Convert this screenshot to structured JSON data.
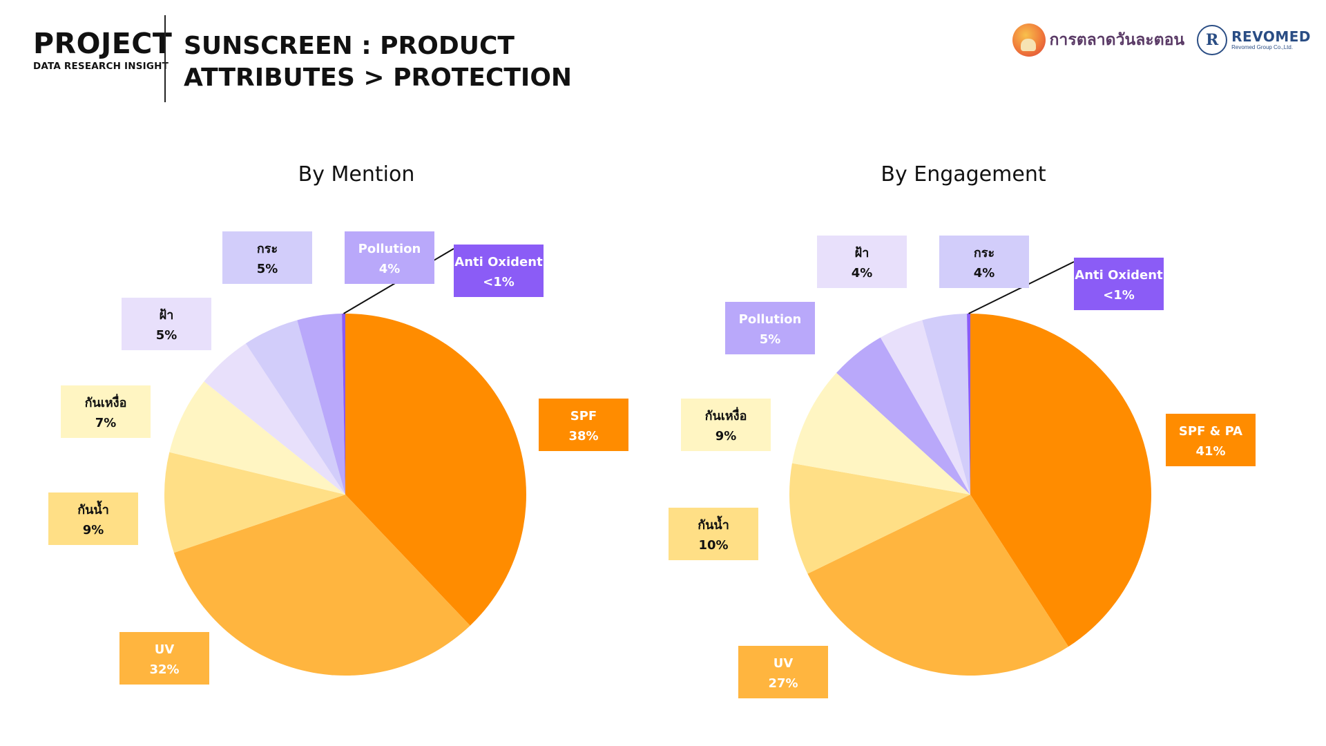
{
  "header": {
    "project": "PROJECT",
    "project_sub": "DATA RESEARCH INSIGHT",
    "title_line1": "SUNSCREEN : PRODUCT",
    "title_line2": "ATTRIBUTES > PROTECTION"
  },
  "logos": {
    "brand": "การตลาดวันละตอน",
    "revomed_mark": "R",
    "revomed_name": "REVOMED",
    "revomed_sub": "Revomed Group Co.,Ltd."
  },
  "chart_data": [
    {
      "type": "pie",
      "title": "By Mention",
      "slices": [
        {
          "label": "SPF",
          "value": 38,
          "value_label": "38%",
          "color": "#FF8C00",
          "text_color": "#ffffff"
        },
        {
          "label": "UV",
          "value": 32,
          "value_label": "32%",
          "color": "#FFB53F",
          "text_color": "#ffffff"
        },
        {
          "label": "กันน้ำ",
          "value": 9,
          "value_label": "9%",
          "color": "#FFDF86",
          "text_color": "#111111"
        },
        {
          "label": "กันเหงื่อ",
          "value": 7,
          "value_label": "7%",
          "color": "#FFF5C2",
          "text_color": "#111111"
        },
        {
          "label": "ฝ้า",
          "value": 5,
          "value_label": "5%",
          "color": "#E8E0FB",
          "text_color": "#111111"
        },
        {
          "label": "กระ",
          "value": 5,
          "value_label": "5%",
          "color": "#D2CDFA",
          "text_color": "#111111"
        },
        {
          "label": "Pollution",
          "value": 4,
          "value_label": "4%",
          "color": "#B9A8FA",
          "text_color": "#ffffff"
        },
        {
          "label": "Anti Oxident",
          "value": 0.3,
          "value_label": "<1%",
          "color": "#8B5CF6",
          "text_color": "#ffffff"
        }
      ]
    },
    {
      "type": "pie",
      "title": "By Engagement",
      "slices": [
        {
          "label": "SPF & PA",
          "value": 41,
          "value_label": "41%",
          "color": "#FF8C00",
          "text_color": "#ffffff"
        },
        {
          "label": "UV",
          "value": 27,
          "value_label": "27%",
          "color": "#FFB53F",
          "text_color": "#ffffff"
        },
        {
          "label": "กันน้ำ",
          "value": 10,
          "value_label": "10%",
          "color": "#FFDF86",
          "text_color": "#111111"
        },
        {
          "label": "กันเหงื่อ",
          "value": 9,
          "value_label": "9%",
          "color": "#FFF5C2",
          "text_color": "#111111"
        },
        {
          "label": "Pollution",
          "value": 5,
          "value_label": "5%",
          "color": "#B9A8FA",
          "text_color": "#ffffff"
        },
        {
          "label": "ฝ้า",
          "value": 4,
          "value_label": "4%",
          "color": "#E8E0FB",
          "text_color": "#111111"
        },
        {
          "label": "กระ",
          "value": 4,
          "value_label": "4%",
          "color": "#D2CDFA",
          "text_color": "#111111"
        },
        {
          "label": "Anti Oxident",
          "value": 0.3,
          "value_label": "<1%",
          "color": "#8B5CF6",
          "text_color": "#ffffff"
        }
      ]
    }
  ]
}
